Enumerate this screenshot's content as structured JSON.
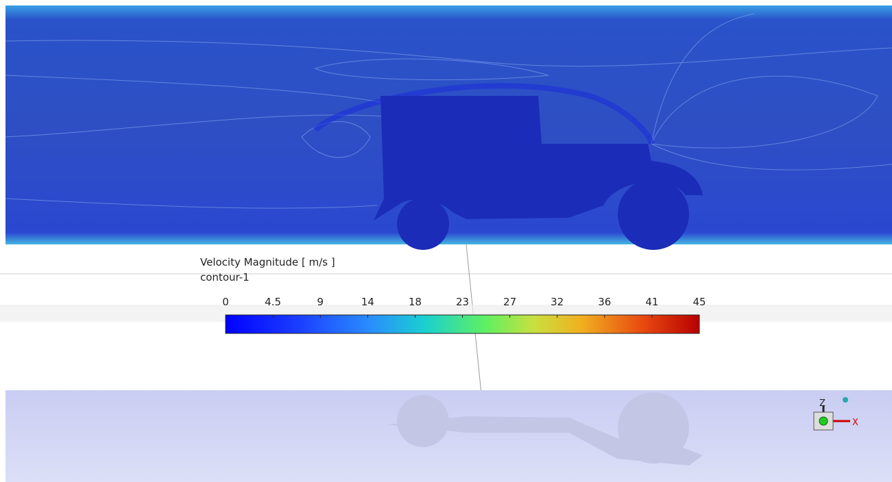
{
  "legend": {
    "title": "Velocity Magnitude [ m/s ]",
    "subtitle": "contour-1",
    "ticks": [
      0,
      4.5,
      9,
      14,
      18,
      23,
      27,
      32,
      36,
      41,
      45
    ]
  },
  "triad": {
    "z_label": "Z",
    "x_label": "X"
  }
}
